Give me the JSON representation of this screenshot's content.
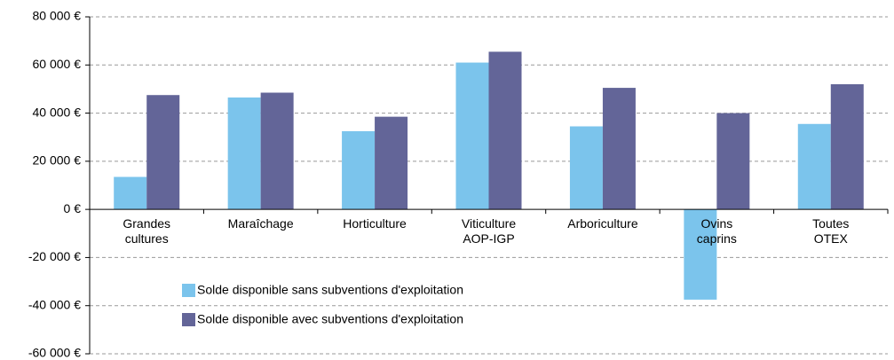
{
  "chart_data": {
    "type": "bar",
    "categories": [
      "Grandes cultures",
      "Maraîchage",
      "Horticulture",
      "Viticulture AOP-IGP",
      "Arboriculture",
      "Ovins caprins",
      "Toutes OTEX"
    ],
    "series": [
      {
        "name": "Solde disponible sans subventions d'exploitation",
        "color": "#7bc4ec",
        "values": [
          13500,
          46500,
          32500,
          61000,
          34500,
          -37500,
          35500
        ]
      },
      {
        "name": "Solde disponible avec subventions d'exploitation",
        "color": "#636598",
        "values": [
          47500,
          48500,
          38500,
          65500,
          50500,
          40000,
          52000
        ]
      }
    ],
    "ylim": [
      -60000,
      80000
    ],
    "yticks": [
      {
        "value": -60000,
        "label": "-60 000 €"
      },
      {
        "value": -40000,
        "label": "-40 000 €"
      },
      {
        "value": -20000,
        "label": "-20 000 €"
      },
      {
        "value": 0,
        "label": "0 €"
      },
      {
        "value": 20000,
        "label": "20 000 €"
      },
      {
        "value": 40000,
        "label": "40 000 €"
      },
      {
        "value": 60000,
        "label": "60 000 €"
      },
      {
        "value": 80000,
        "label": "80 000 €"
      }
    ],
    "grid": true
  }
}
